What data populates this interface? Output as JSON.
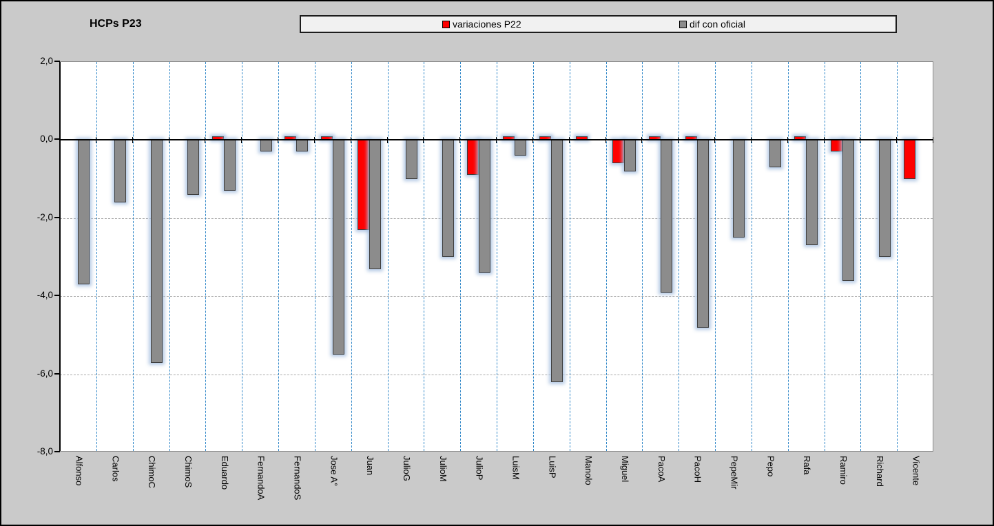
{
  "chart_data": {
    "type": "bar",
    "title": "HCPs P23",
    "categories": [
      "Alfonso",
      "Carlos",
      "ChimoC",
      "ChimoS",
      "Eduardo",
      "FernandoA",
      "FernandoS",
      "Jose A°",
      "Juan",
      "JulioG",
      "JulioM",
      "JulioP",
      "LuisM",
      "LuisP",
      "Manolo",
      "Miguel",
      "PacoA",
      "PacoH",
      "PepeMir",
      "Pepo",
      "Rafa",
      "Ramiro",
      "Richard",
      "Vicente"
    ],
    "series": [
      {
        "name": "variaciones P22",
        "color": "#fe0000",
        "values": [
          0,
          0,
          0,
          0,
          0.1,
          0,
          0.1,
          0.1,
          -2.3,
          0,
          0,
          -0.9,
          0.1,
          0.1,
          0.1,
          -0.6,
          0.1,
          0.1,
          0,
          0,
          0.1,
          -0.3,
          0,
          -1.0
        ]
      },
      {
        "name": "dif con oficial",
        "color": "#8c8c8c",
        "values": [
          -3.7,
          -1.6,
          -5.7,
          -1.4,
          -1.3,
          -0.3,
          -0.3,
          -5.5,
          -3.3,
          -1.0,
          -3.0,
          -3.4,
          -0.4,
          -6.2,
          0,
          -0.8,
          -3.9,
          -4.8,
          -2.5,
          -0.7,
          -2.7,
          -3.6,
          -3.0,
          0
        ]
      }
    ],
    "ylim": [
      -8,
      2
    ],
    "y_tick_values": [
      2,
      0,
      -2,
      -4,
      -6,
      -8
    ],
    "y_tick_labels": [
      "2,0",
      "0,0",
      "-2,0",
      "-4,0",
      "-6,0",
      "-8,0"
    ],
    "grid": {
      "horizontal": "dashed gray at -2, -4, -6",
      "vertical": "dashed blue at category boundaries"
    },
    "legend_position": "top",
    "note_zero_values_mean_no_bar": true
  },
  "colors": {
    "background": "#cacaca",
    "plot_background": "#ffffff",
    "horizontal_gridline": "#a8a8a8",
    "vertical_gridline": "#2e86c8",
    "axis": "#000000",
    "bar_red": "#fe0000",
    "bar_gray": "#8c8c8c"
  }
}
